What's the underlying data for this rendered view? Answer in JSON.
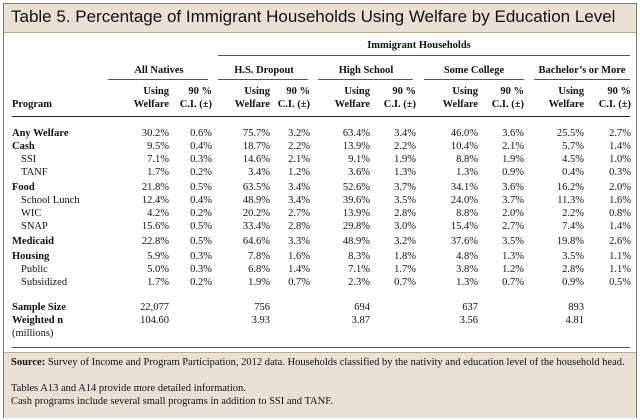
{
  "title": "Table 5. Percentage of Immigrant Households Using Welfare by Education Level",
  "group_header": "Immigrant Households",
  "column_groups": [
    "All Natives",
    "H.S. Dropout",
    "High School",
    "Some College",
    "Bachelor’s or More"
  ],
  "sub_headers": {
    "using_1": "Using",
    "using_2": "Welfare",
    "ci_1": "90 %",
    "ci_2": "C.I. (±)",
    "program": "Program"
  },
  "rows": [
    {
      "label": "Any Welfare",
      "style": "b",
      "vals": [
        "30.2%",
        "0.6%",
        "75.7%",
        "3.2%",
        "63.4%",
        "3.4%",
        "46.0%",
        "3.6%",
        "25.5%",
        "2.7%"
      ]
    },
    {
      "label": "Cash",
      "style": "b",
      "vals": [
        "9.5%",
        "0.4%",
        "18.7%",
        "2.2%",
        "13.9%",
        "2.2%",
        "10.4%",
        "2.1%",
        "5.7%",
        "1.4%"
      ]
    },
    {
      "label": "SSI",
      "style": "sub",
      "vals": [
        "7.1%",
        "0.3%",
        "14.6%",
        "2.1%",
        "9.1%",
        "1.9%",
        "8.8%",
        "1.9%",
        "4.5%",
        "1.0%"
      ]
    },
    {
      "label": "TANF",
      "style": "sub",
      "vals": [
        "1.7%",
        "0.2%",
        "3.4%",
        "1.2%",
        "3.6%",
        "1.3%",
        "1.3%",
        "0.9%",
        "0.4%",
        "0.3%"
      ]
    },
    {
      "label": "Food",
      "style": "b",
      "vals": [
        "21.8%",
        "0.5%",
        "63.5%",
        "3.4%",
        "52.6%",
        "3.7%",
        "34.1%",
        "3.6%",
        "16.2%",
        "2.0%"
      ]
    },
    {
      "label": "School Lunch",
      "style": "sub",
      "vals": [
        "12.4%",
        "0.4%",
        "48.9%",
        "3.4%",
        "39.6%",
        "3.5%",
        "24.0%",
        "3.7%",
        "11.3%",
        "1.6%"
      ]
    },
    {
      "label": "WIC",
      "style": "sub",
      "vals": [
        "4.2%",
        "0.2%",
        "20.2%",
        "2.7%",
        "13.9%",
        "2.8%",
        "8.8%",
        "2.0%",
        "2.2%",
        "0.8%"
      ]
    },
    {
      "label": "SNAP",
      "style": "sub",
      "vals": [
        "15.6%",
        "0.5%",
        "33.4%",
        "2.8%",
        "29.8%",
        "3.0%",
        "15.4%",
        "2.7%",
        "7.4%",
        "1.4%"
      ]
    },
    {
      "label": "Medicaid",
      "style": "b",
      "vals": [
        "22.8%",
        "0.5%",
        "64.6%",
        "3.3%",
        "48.9%",
        "3.2%",
        "37.6%",
        "3.5%",
        "19.8%",
        "2.6%"
      ]
    },
    {
      "label": "Housing",
      "style": "b",
      "vals": [
        "5.9%",
        "0.3%",
        "7.8%",
        "1.6%",
        "8.3%",
        "1.8%",
        "4.8%",
        "1.3%",
        "3.5%",
        "1.1%"
      ]
    },
    {
      "label": "Public",
      "style": "sub",
      "vals": [
        "5.0%",
        "0.3%",
        "6.8%",
        "1.4%",
        "7.1%",
        "1.7%",
        "3.8%",
        "1.2%",
        "2.8%",
        "1.1%"
      ]
    },
    {
      "label": "Subsidized",
      "style": "sub",
      "vals": [
        "1.7%",
        "0.2%",
        "1.9%",
        "0.7%",
        "2.3%",
        "0.7%",
        "1.3%",
        "0.7%",
        "0.9%",
        "0.5%"
      ]
    }
  ],
  "sample": {
    "label": "Sample Size",
    "vals": [
      "22,077",
      "756",
      "694",
      "637",
      "893"
    ]
  },
  "weighted": {
    "label": "Weighted n",
    "label2": "(millions)",
    "vals": [
      "104.60",
      "3.93",
      "3.87",
      "3.56",
      "4.81"
    ]
  },
  "footer": {
    "source_label": "Source:",
    "source_text": " Survey of Income and Program Participation, 2012 data. Households classified by the nativity and education level of the household head.",
    "note1": "Tables A13 and A14 provide more detailed information.",
    "note2": "Cash programs include several small programs in addition to SSI and TANF."
  }
}
